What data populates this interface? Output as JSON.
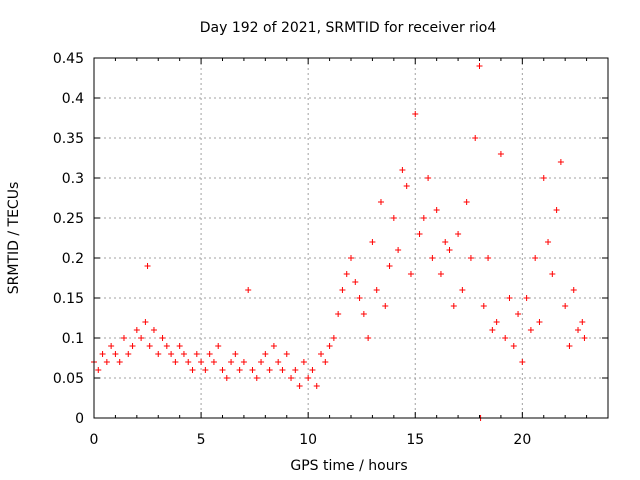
{
  "chart_data": {
    "type": "scatter",
    "title": "Day 192 of 2021, SRMTID for receiver rio4",
    "xlabel": "GPS time / hours",
    "ylabel": "SRMTID / TECUs",
    "xlim": [
      0,
      24
    ],
    "ylim": [
      0,
      0.45
    ],
    "xticks": [
      0,
      5,
      10,
      15,
      20
    ],
    "xtick_labels": [
      "0",
      "5",
      "10",
      "15",
      "20"
    ],
    "yticks": [
      0,
      0.05,
      0.1,
      0.15,
      0.2,
      0.25,
      0.3,
      0.35,
      0.4,
      0.45
    ],
    "ytick_labels": [
      "0",
      "0.05",
      "0.1",
      "0.15",
      "0.2",
      "0.25",
      "0.3",
      "0.35",
      "0.4",
      "0.45"
    ],
    "grid": true,
    "marker": "+",
    "color": "#ff0000",
    "series": [
      {
        "name": "SRMTID rio4",
        "x": [
          0.0,
          0.2,
          0.4,
          0.6,
          0.8,
          1.0,
          1.2,
          1.4,
          1.6,
          1.8,
          2.0,
          2.2,
          2.4,
          2.5,
          2.6,
          2.8,
          3.0,
          3.2,
          3.4,
          3.6,
          3.8,
          4.0,
          4.2,
          4.4,
          4.6,
          4.8,
          5.0,
          5.2,
          5.4,
          5.6,
          5.8,
          6.0,
          6.2,
          6.4,
          6.6,
          6.8,
          7.0,
          7.2,
          7.4,
          7.6,
          7.8,
          8.0,
          8.2,
          8.4,
          8.6,
          8.8,
          9.0,
          9.2,
          9.4,
          9.6,
          9.8,
          10.0,
          10.2,
          10.4,
          10.6,
          10.8,
          11.0,
          11.2,
          11.4,
          11.6,
          11.8,
          12.0,
          12.2,
          12.4,
          12.6,
          12.8,
          13.0,
          13.2,
          13.4,
          13.6,
          13.8,
          14.0,
          14.2,
          14.4,
          14.6,
          14.8,
          15.0,
          15.2,
          15.4,
          15.6,
          15.8,
          16.0,
          16.2,
          16.4,
          16.6,
          16.8,
          17.0,
          17.2,
          17.4,
          17.6,
          17.8,
          18.0,
          18.05,
          18.2,
          18.4,
          18.6,
          18.8,
          19.0,
          19.2,
          19.4,
          19.6,
          19.8,
          20.0,
          20.2,
          20.4,
          20.6,
          20.8,
          21.0,
          21.2,
          21.4,
          21.6,
          21.8,
          22.0,
          22.2,
          22.4,
          22.6,
          22.8,
          22.9
        ],
        "y": [
          0.07,
          0.06,
          0.08,
          0.07,
          0.09,
          0.08,
          0.07,
          0.1,
          0.08,
          0.09,
          0.11,
          0.1,
          0.12,
          0.19,
          0.09,
          0.11,
          0.08,
          0.1,
          0.09,
          0.08,
          0.07,
          0.09,
          0.08,
          0.07,
          0.06,
          0.08,
          0.07,
          0.06,
          0.08,
          0.07,
          0.09,
          0.06,
          0.05,
          0.07,
          0.08,
          0.06,
          0.07,
          0.16,
          0.06,
          0.05,
          0.07,
          0.08,
          0.06,
          0.09,
          0.07,
          0.06,
          0.08,
          0.05,
          0.06,
          0.04,
          0.07,
          0.05,
          0.06,
          0.04,
          0.08,
          0.07,
          0.09,
          0.1,
          0.13,
          0.16,
          0.18,
          0.2,
          0.17,
          0.15,
          0.13,
          0.1,
          0.22,
          0.16,
          0.27,
          0.14,
          0.19,
          0.25,
          0.21,
          0.31,
          0.29,
          0.18,
          0.38,
          0.23,
          0.25,
          0.3,
          0.2,
          0.26,
          0.18,
          0.22,
          0.21,
          0.14,
          0.23,
          0.16,
          0.27,
          0.2,
          0.35,
          0.44,
          0.0,
          0.14,
          0.2,
          0.11,
          0.12,
          0.33,
          0.1,
          0.15,
          0.09,
          0.13,
          0.07,
          0.15,
          0.11,
          0.2,
          0.12,
          0.3,
          0.22,
          0.18,
          0.26,
          0.32,
          0.14,
          0.09,
          0.16,
          0.11,
          0.12,
          0.1
        ]
      }
    ]
  }
}
